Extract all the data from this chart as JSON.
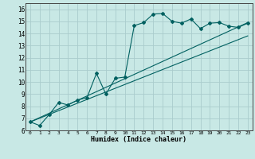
{
  "title": "",
  "xlabel": "Humidex (Indice chaleur)",
  "bg_color": "#c8e8e5",
  "grid_color": "#aacccc",
  "line_color": "#006060",
  "xlim": [
    -0.5,
    23.5
  ],
  "ylim": [
    6,
    16.5
  ],
  "xticks": [
    0,
    1,
    2,
    3,
    4,
    5,
    6,
    7,
    8,
    9,
    10,
    11,
    12,
    13,
    14,
    15,
    16,
    17,
    18,
    19,
    20,
    21,
    22,
    23
  ],
  "yticks": [
    6,
    7,
    8,
    9,
    10,
    11,
    12,
    13,
    14,
    15,
    16
  ],
  "humidex_curve_x": [
    0,
    1,
    2,
    3,
    4,
    5,
    6,
    7,
    8,
    9,
    10,
    11,
    12,
    13,
    14,
    15,
    16,
    17,
    18,
    19,
    20,
    21,
    22,
    23
  ],
  "humidex_curve_y": [
    6.7,
    6.4,
    7.3,
    8.3,
    8.1,
    8.5,
    8.7,
    10.7,
    9.0,
    10.3,
    10.4,
    14.65,
    14.9,
    15.6,
    15.65,
    15.0,
    14.85,
    15.2,
    14.4,
    14.85,
    14.9,
    14.6,
    14.5,
    14.85
  ],
  "line1_x": [
    0,
    23
  ],
  "line1_y": [
    6.7,
    13.8
  ],
  "line2_x": [
    0,
    23
  ],
  "line2_y": [
    6.7,
    14.9
  ]
}
